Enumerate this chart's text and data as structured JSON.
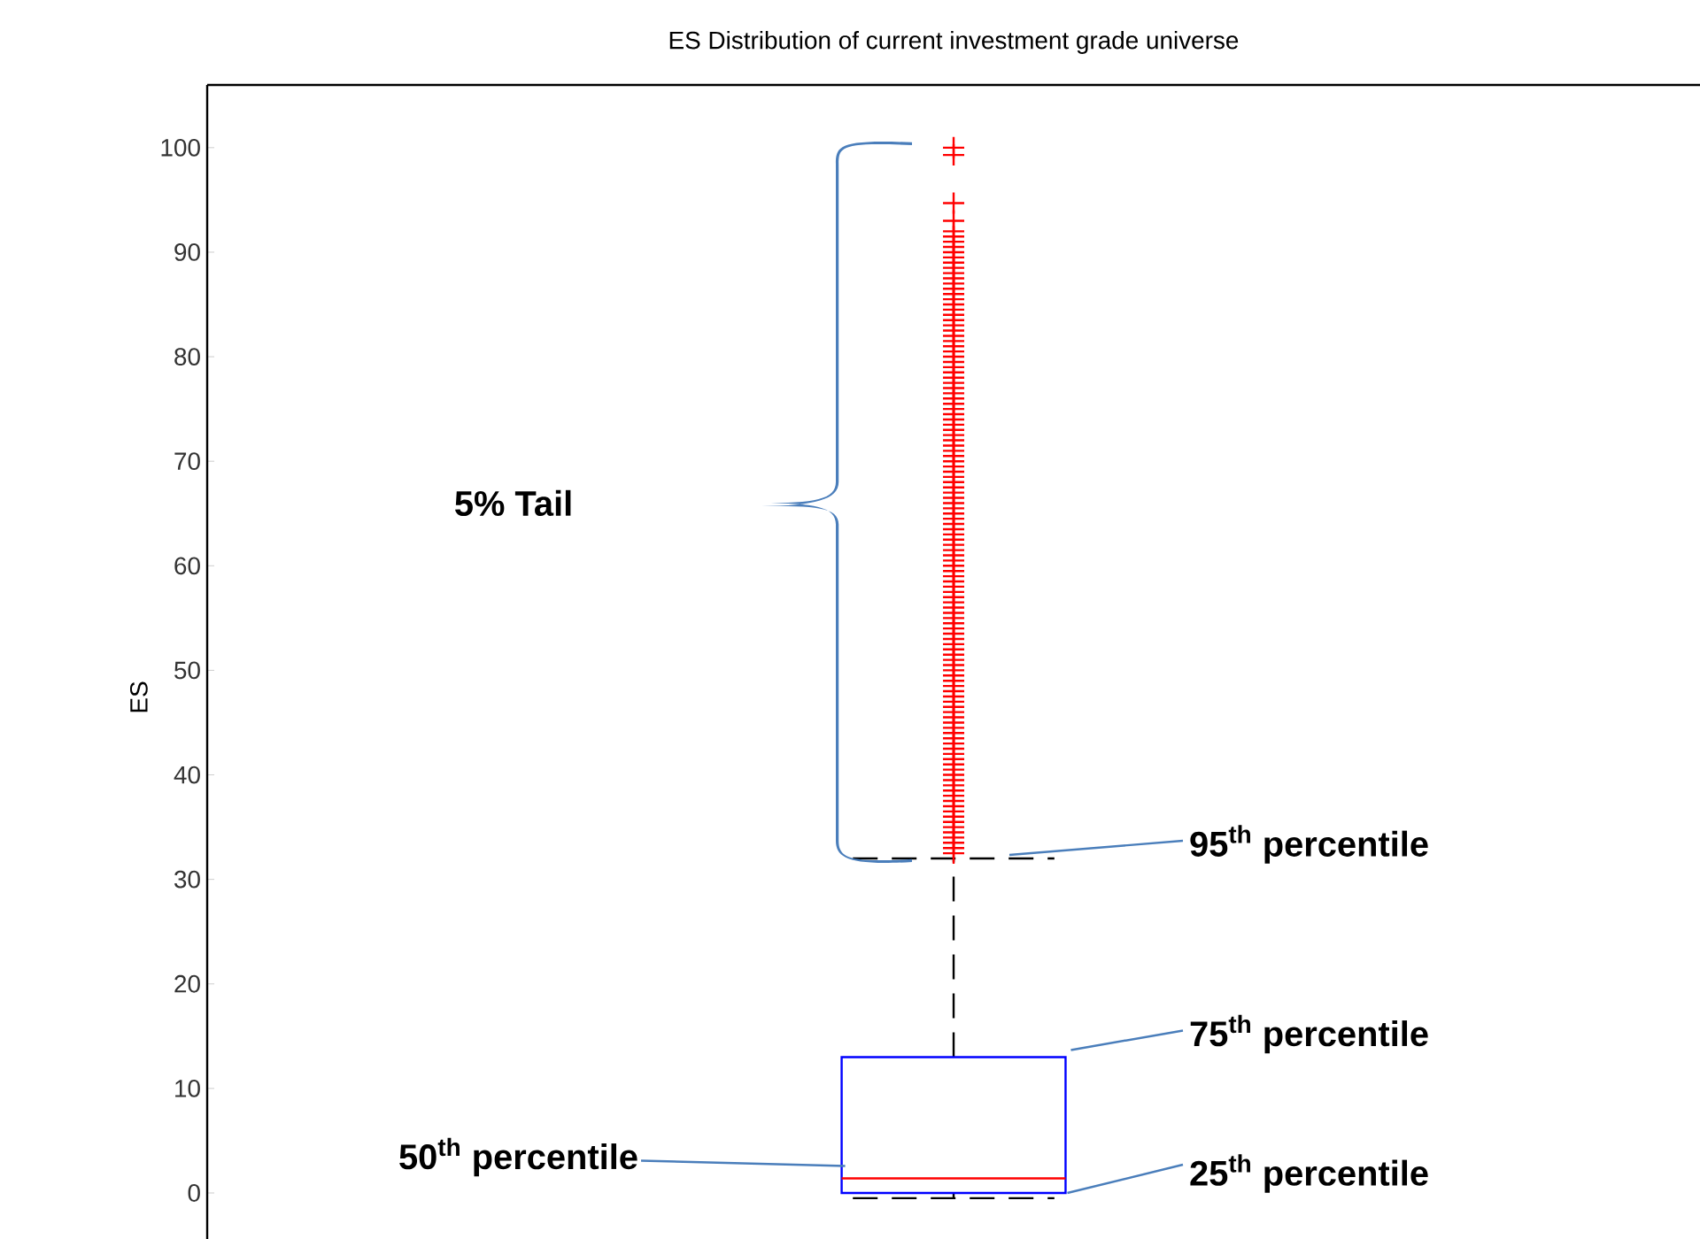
{
  "chart_data": {
    "type": "box",
    "title": "ES Distribution of current investment grade universe",
    "ylabel": "ES",
    "categories": [
      null
    ],
    "ylim": [
      -4.4,
      106
    ],
    "yticks": [
      0,
      10,
      20,
      30,
      40,
      50,
      60,
      70,
      80,
      90,
      100
    ],
    "marker": "cross",
    "grid": false,
    "tick_labels": "y",
    "series": [
      {
        "color": "#0000ff",
        "boxes": [
          {
            "low": -0.5,
            "q1": 0,
            "median": 1.4,
            "q3": 13,
            "high": 32,
            "outliers": [
              32.5,
              33,
              33.5,
              34,
              34.5,
              35,
              35.5,
              36,
              36.5,
              37,
              37.5,
              38,
              38.5,
              39,
              39.5,
              40,
              40.5,
              41,
              41.5,
              42,
              42.5,
              43,
              43.5,
              44,
              44.5,
              45,
              45.5,
              46,
              46.5,
              47,
              47.5,
              48,
              48.5,
              49,
              49.5,
              50,
              50.5,
              51,
              51.5,
              52,
              52.5,
              53,
              53.5,
              54,
              54.5,
              55,
              55.5,
              56,
              56.5,
              57,
              57.5,
              58,
              58.5,
              59,
              59.5,
              60,
              60.5,
              61,
              61.5,
              62,
              62.5,
              63,
              63.5,
              64,
              64.5,
              65,
              65.5,
              66,
              66.5,
              67,
              67.5,
              68,
              68.5,
              69,
              69.5,
              70,
              70.5,
              71,
              71.5,
              72,
              72.5,
              73,
              73.5,
              74,
              74.5,
              75,
              75.5,
              76,
              76.5,
              77,
              77.5,
              78,
              78.5,
              79,
              79.5,
              80,
              80.5,
              81,
              81.5,
              82,
              82.5,
              83,
              83.5,
              84,
              84.5,
              85,
              85.5,
              86,
              86.5,
              87,
              87.5,
              88,
              88.5,
              89,
              89.5,
              90,
              90.5,
              91,
              91.5,
              92,
              93,
              94.7,
              99.3,
              100
            ]
          }
        ]
      }
    ],
    "annotations": [
      "5% Tail",
      "95$^{th}$ percentile",
      "75$^{th}$ percentile",
      "50$^{th}$ percentile",
      "25$^{th}$ percentile"
    ]
  }
}
